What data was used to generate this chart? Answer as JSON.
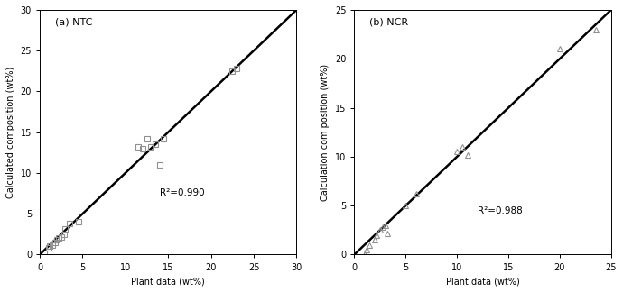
{
  "ntc": {
    "label": "(a) NTC",
    "x": [
      0.5,
      1.0,
      1.2,
      1.5,
      1.8,
      2.0,
      2.2,
      2.5,
      2.8,
      3.0,
      3.5,
      4.5,
      11.5,
      12.0,
      12.5,
      13.0,
      13.5,
      14.0,
      14.5,
      22.5,
      23.0
    ],
    "y": [
      0.2,
      0.8,
      1.0,
      1.2,
      1.5,
      1.8,
      2.0,
      2.2,
      2.5,
      3.2,
      3.8,
      4.0,
      13.2,
      13.0,
      14.2,
      13.2,
      13.5,
      11.0,
      14.2,
      22.5,
      22.8
    ],
    "marker": "s",
    "markersize": 5,
    "r2": "R²=0.990",
    "xlim": [
      0,
      30
    ],
    "ylim": [
      0,
      30
    ],
    "xticks": [
      0,
      5,
      10,
      15,
      20,
      25,
      30
    ],
    "yticks": [
      0,
      5,
      10,
      15,
      20,
      25,
      30
    ],
    "xlabel": "Plant data (wt%)",
    "ylabel": "Calculated composition (wt%)",
    "r2_x": 14,
    "r2_y": 7
  },
  "ncr": {
    "label": "(b) NCR",
    "x": [
      1.0,
      1.2,
      1.5,
      2.0,
      2.2,
      2.5,
      2.8,
      3.0,
      3.2,
      5.0,
      6.0,
      10.0,
      10.5,
      11.0,
      20.0,
      23.5
    ],
    "y": [
      0.0,
      0.5,
      1.0,
      1.5,
      2.0,
      2.5,
      2.8,
      3.0,
      2.2,
      5.0,
      6.2,
      10.5,
      11.0,
      10.2,
      21.0,
      23.0
    ],
    "marker": "^",
    "markersize": 5,
    "r2": "R²=0.988",
    "xlim": [
      0,
      25
    ],
    "ylim": [
      0,
      25
    ],
    "xticks": [
      0,
      5,
      10,
      15,
      20,
      25
    ],
    "yticks": [
      0,
      5,
      10,
      15,
      20,
      25
    ],
    "xlabel": "Plant data (wt%)",
    "ylabel": "Calculation com position (wt%)",
    "r2_x": 12,
    "r2_y": 4
  },
  "line_color": "#000000",
  "marker_facecolor": "none",
  "marker_edge_color": "#909090",
  "background_color": "#ffffff",
  "text_color": "#000000",
  "figwidth": 6.9,
  "figheight": 3.24,
  "dpi": 100
}
